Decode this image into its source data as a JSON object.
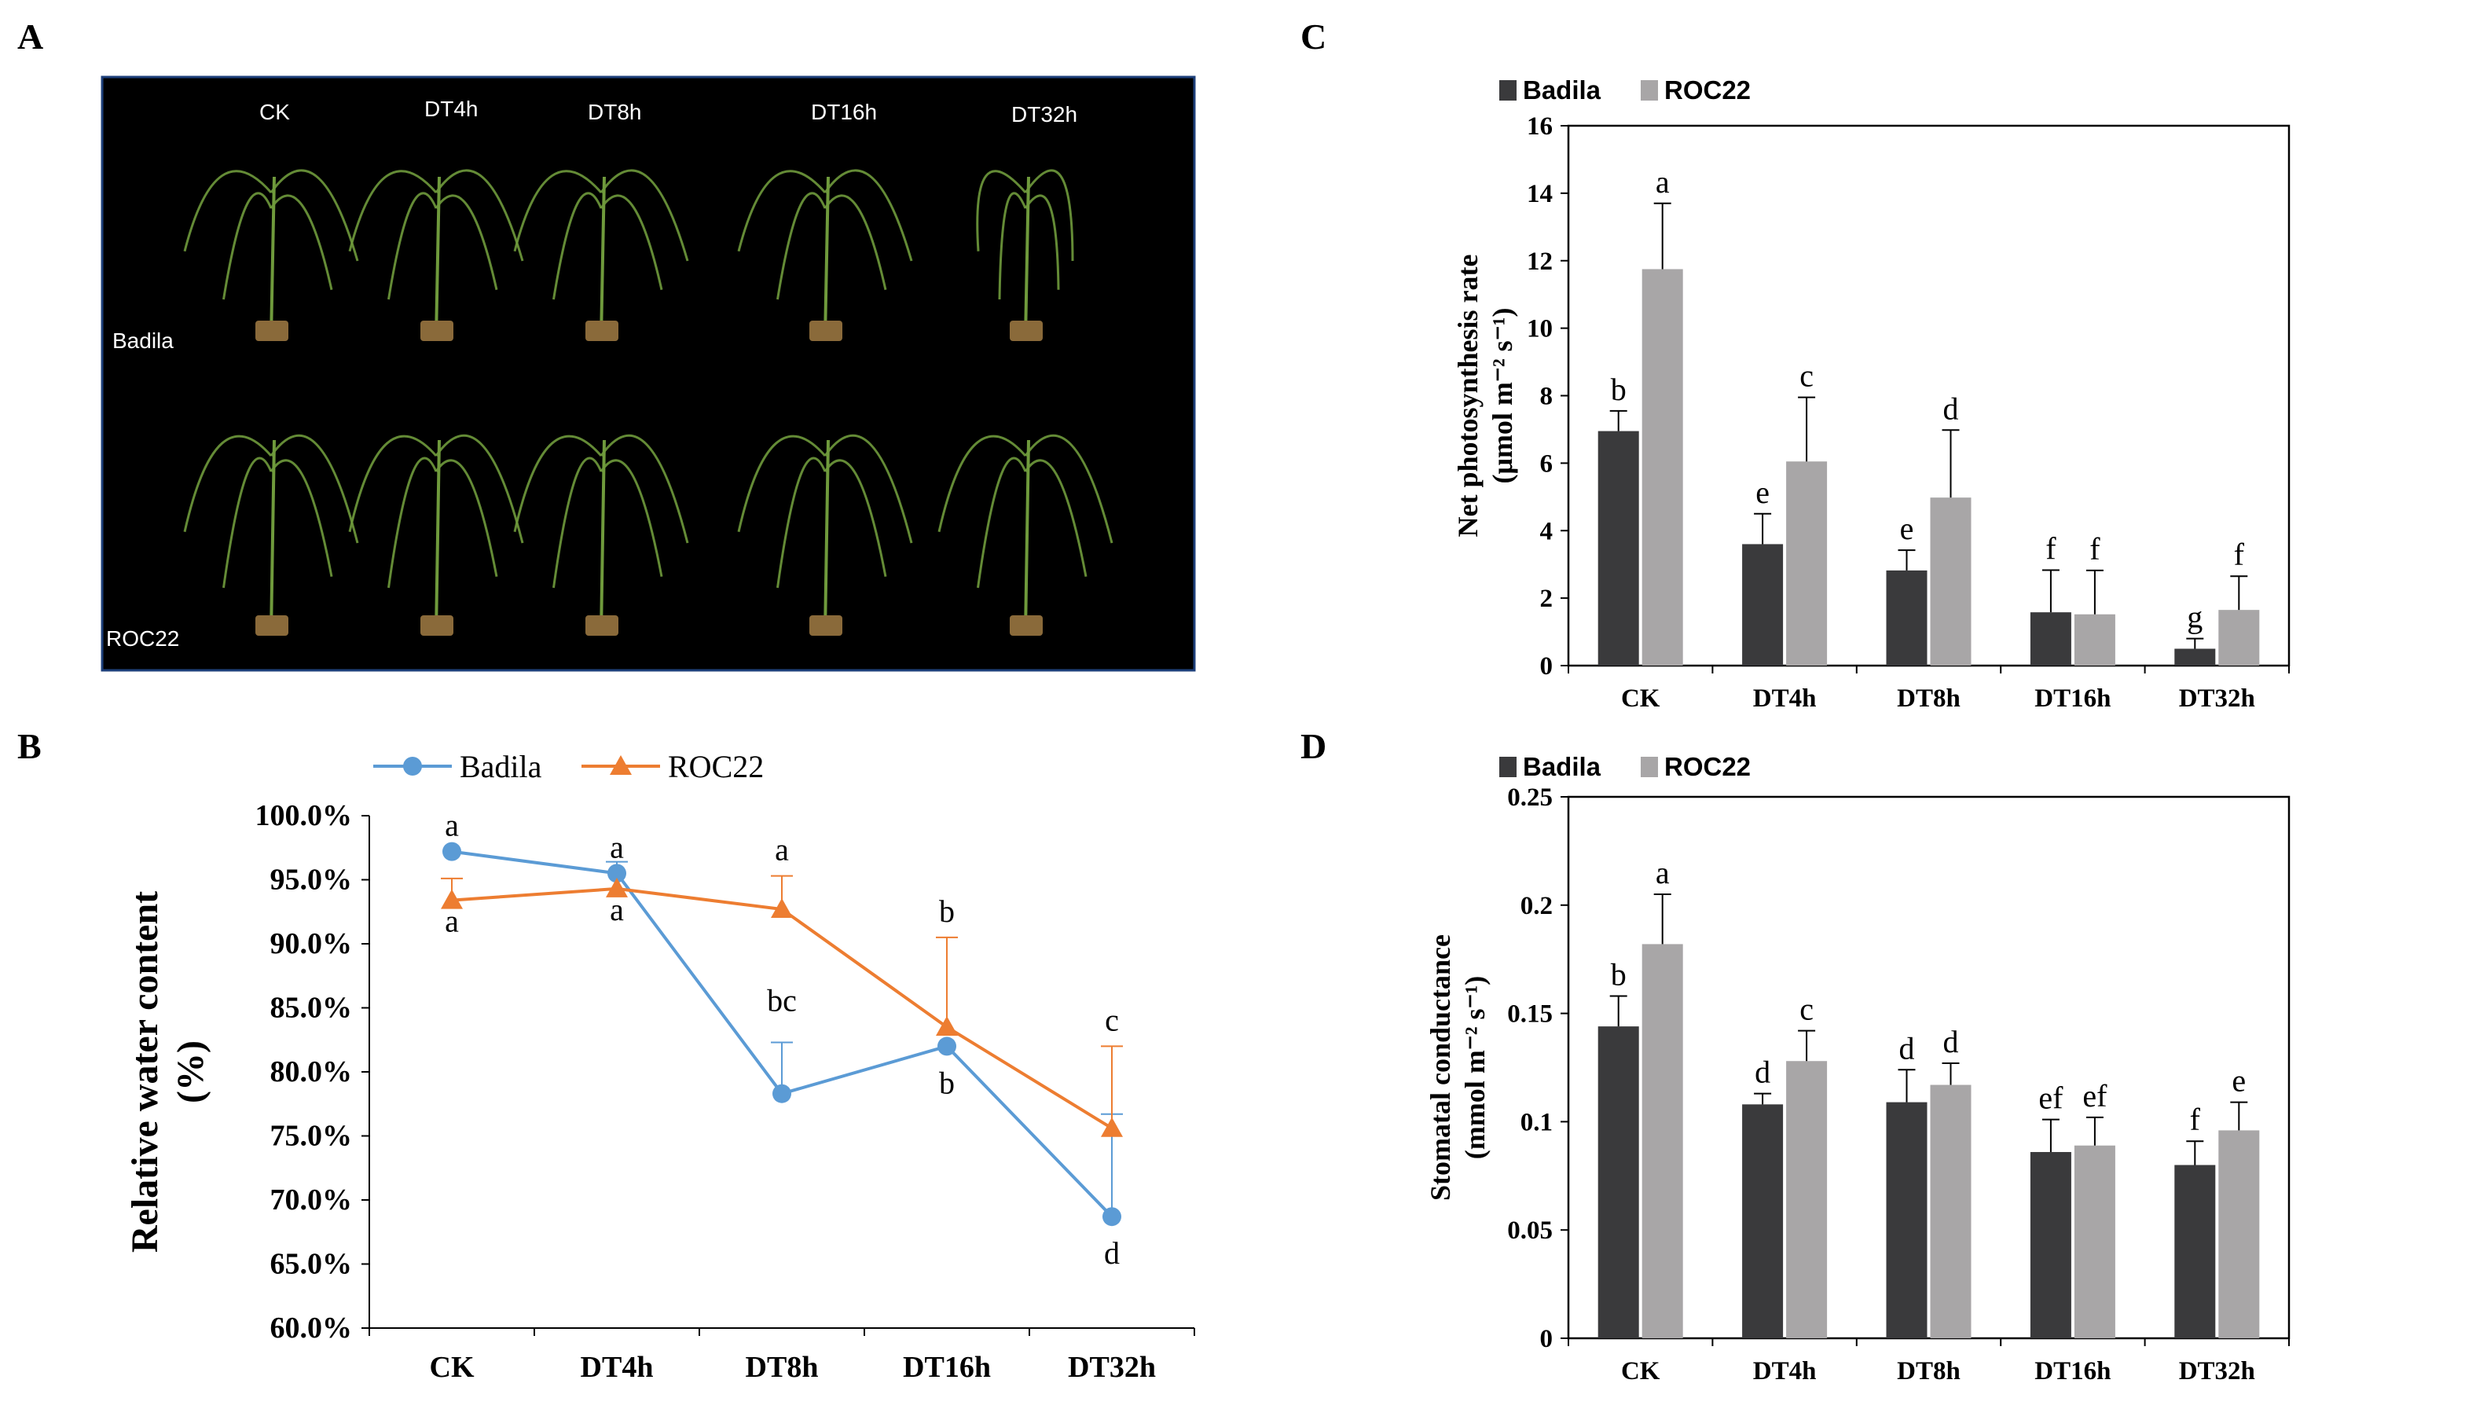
{
  "panels": {
    "a": "A",
    "b": "B",
    "c": "C",
    "d": "D"
  },
  "photo": {
    "column_labels": [
      "CK",
      "DT4h",
      "DT8h",
      "DT16h",
      "DT32h"
    ],
    "row_labels": [
      "Badila",
      "ROC22"
    ]
  },
  "colors": {
    "badila_bar": "#3a3a3c",
    "roc22_bar": "#a8a6a7",
    "badila_line": "#5b9bd5",
    "roc22_line": "#ed7d31",
    "photo_bg": "#000000",
    "plant": "#6f9a3c"
  },
  "chart_data": [
    {
      "panel": "B",
      "type": "line",
      "categories": [
        "CK",
        "DT4h",
        "DT8h",
        "DT16h",
        "DT32h"
      ],
      "ylabel_line1": "Relative water content",
      "ylabel_line2": "(%)",
      "ylim": [
        60,
        100
      ],
      "yticks": [
        "60.0%",
        "65.0%",
        "70.0%",
        "75.0%",
        "80.0%",
        "85.0%",
        "90.0%",
        "95.0%",
        "100.0%"
      ],
      "legend_position": "top",
      "series": [
        {
          "name": "Badila",
          "marker": "circle",
          "values": [
            97.2,
            95.5,
            78.3,
            82.0,
            68.7
          ],
          "errors": [
            0,
            0.9,
            4.0,
            0,
            8.0
          ],
          "letters": [
            "a",
            "a",
            "bc",
            "b",
            "d"
          ]
        },
        {
          "name": "ROC22",
          "marker": "triangle",
          "values": [
            93.4,
            94.3,
            92.7,
            83.5,
            75.6
          ],
          "errors": [
            1.7,
            0,
            2.6,
            7.0,
            6.4
          ],
          "letters": [
            "a",
            "a",
            "a",
            "b",
            "c"
          ]
        }
      ]
    },
    {
      "panel": "C",
      "type": "bar",
      "categories": [
        "CK",
        "DT4h",
        "DT8h",
        "DT16h",
        "DT32h"
      ],
      "ylabel_line1": "Net photosynthesis rate",
      "ylabel_line2": "(μmol m⁻² s⁻¹)",
      "ylim": [
        0,
        16
      ],
      "yticks": [
        "0",
        "2",
        "4",
        "6",
        "8",
        "10",
        "12",
        "14",
        "16"
      ],
      "legend_position": "top-left",
      "series": [
        {
          "name": "Badila",
          "values": [
            6.95,
            3.6,
            2.82,
            1.58,
            0.5
          ],
          "errors": [
            0.6,
            0.9,
            0.6,
            1.25,
            0.3
          ],
          "letters": [
            "b",
            "e",
            "e",
            "f",
            "g"
          ]
        },
        {
          "name": "ROC22",
          "values": [
            11.75,
            6.05,
            4.98,
            1.52,
            1.65
          ],
          "errors": [
            1.95,
            1.9,
            2.0,
            1.3,
            1.0
          ],
          "letters": [
            "a",
            "c",
            "d",
            "f",
            "f"
          ]
        }
      ]
    },
    {
      "panel": "D",
      "type": "bar",
      "categories": [
        "CK",
        "DT4h",
        "DT8h",
        "DT16h",
        "DT32h"
      ],
      "ylabel_line1": "Stomatal conductance",
      "ylabel_line2": "(mmol m⁻² s⁻¹)",
      "ylim": [
        0,
        0.25
      ],
      "yticks": [
        "0",
        "0.05",
        "0.1",
        "0.15",
        "0.2",
        "0.25"
      ],
      "legend_position": "top-left",
      "series": [
        {
          "name": "Badila",
          "values": [
            0.144,
            0.108,
            0.109,
            0.086,
            0.08
          ],
          "errors": [
            0.014,
            0.005,
            0.015,
            0.015,
            0.011
          ],
          "letters": [
            "b",
            "d",
            "d",
            "ef",
            "f"
          ]
        },
        {
          "name": "ROC22",
          "values": [
            0.182,
            0.128,
            0.117,
            0.089,
            0.096
          ],
          "errors": [
            0.023,
            0.014,
            0.01,
            0.013,
            0.013
          ],
          "letters": [
            "a",
            "c",
            "d",
            "ef",
            "e"
          ]
        }
      ]
    }
  ]
}
